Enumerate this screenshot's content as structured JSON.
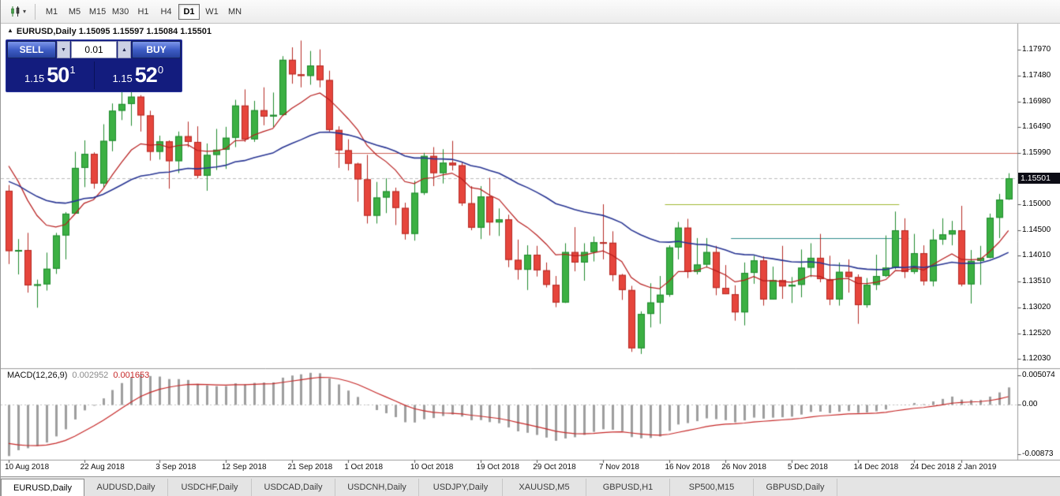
{
  "toolbar": {
    "chart_type_dropdown_icon": "▾",
    "timeframes": [
      {
        "label": "M1",
        "active": false
      },
      {
        "label": "M5",
        "active": false
      },
      {
        "label": "M15",
        "active": false
      },
      {
        "label": "M30",
        "active": false
      },
      {
        "label": "H1",
        "active": false
      },
      {
        "label": "H4",
        "active": false
      },
      {
        "label": "D1",
        "active": true
      },
      {
        "label": "W1",
        "active": false
      },
      {
        "label": "MN",
        "active": false
      }
    ]
  },
  "chart": {
    "title_marker": "▲",
    "title_symbol": "EURUSD,Daily",
    "title_ohlc": "1.15095 1.15597 1.15084 1.15501",
    "current_price": "1.15501",
    "one_click": {
      "sell_label": "SELL",
      "buy_label": "BUY",
      "volume": "0.01",
      "volume_down_icon": "▼",
      "volume_up_icon": "▲",
      "bid_small": "1.15",
      "bid_big": "50",
      "bid_sup": "1",
      "ask_small": "1.15",
      "ask_big": "52",
      "ask_sup": "0"
    }
  },
  "macd_panel": {
    "label": "MACD(12,26,9)",
    "value_main": "0.002952",
    "value_signal": "0.001653"
  },
  "tabs": [
    {
      "label": "EURUSD,Daily",
      "active": true
    },
    {
      "label": "AUDUSD,Daily",
      "active": false
    },
    {
      "label": "USDCHF,Daily",
      "active": false
    },
    {
      "label": "USDCAD,Daily",
      "active": false
    },
    {
      "label": "USDCNH,Daily",
      "active": false
    },
    {
      "label": "USDJPY,Daily",
      "active": false
    },
    {
      "label": "XAUUSD,M5",
      "active": false
    },
    {
      "label": "GBPUSD,H1",
      "active": false
    },
    {
      "label": "SP500,M15",
      "active": false
    },
    {
      "label": "GBPUSD,Daily",
      "active": false
    }
  ],
  "chart_data": {
    "type": "candlestick",
    "title": "EURUSD,Daily",
    "symbol": "EURUSD",
    "timeframe": "Daily",
    "ohlc_current": {
      "open": 1.15095,
      "high": 1.15597,
      "low": 1.15084,
      "close": 1.15501
    },
    "price_axis_labels": [
      "1.17970",
      "1.17480",
      "1.16980",
      "1.16490",
      "1.15990",
      "1.15000",
      "1.14500",
      "1.14010",
      "1.13510",
      "1.13020",
      "1.12520",
      "1.12030"
    ],
    "macd_axis_labels": [
      "0.005074",
      "0.00",
      "-0.00873"
    ],
    "date_labels": [
      {
        "label": "10 Aug 2018",
        "index": 0
      },
      {
        "label": "22 Aug 2018",
        "index": 8
      },
      {
        "label": "3 Sep 2018",
        "index": 16
      },
      {
        "label": "12 Sep 2018",
        "index": 23
      },
      {
        "label": "21 Sep 2018",
        "index": 30
      },
      {
        "label": "1 Oct 2018",
        "index": 36
      },
      {
        "label": "10 Oct 2018",
        "index": 43
      },
      {
        "label": "19 Oct 2018",
        "index": 50
      },
      {
        "label": "29 Oct 2018",
        "index": 56
      },
      {
        "label": "7 Nov 2018",
        "index": 63
      },
      {
        "label": "16 Nov 2018",
        "index": 70
      },
      {
        "label": "26 Nov 2018",
        "index": 76
      },
      {
        "label": "5 Dec 2018",
        "index": 83
      },
      {
        "label": "14 Dec 2018",
        "index": 90
      },
      {
        "label": "24 Dec 2018",
        "index": 96
      },
      {
        "label": "2 Jan 2019",
        "index": 101
      }
    ],
    "price_range": {
      "top": 1.1843,
      "bottom": 1.1186
    },
    "colors": {
      "up_fill": "#3cb043",
      "up_stroke": "#1f8a2e",
      "down_fill": "#e6453c",
      "down_stroke": "#b52a24",
      "ma_fast": "#b71c1c",
      "ma_slow": "#283593",
      "hline_resistance": "#cd6155",
      "hline_upper": "#9fb832",
      "hline_lower": "#2e8b8b",
      "macd_histogram": "#9e9e9e",
      "macd_signal": "#c62828",
      "bid_line": "#bcbcbc"
    },
    "moving_averages": [
      {
        "type": "ema",
        "period": 10,
        "seed": 1.161,
        "color_key": "ma_fast",
        "width": 1.2
      },
      {
        "type": "ema",
        "period": 34,
        "seed": 1.1552,
        "color_key": "ma_slow",
        "width": 1.6
      }
    ],
    "hlines": [
      {
        "price": 1.1599,
        "start_index": 35,
        "to_right_edge": true,
        "color_key": "hline_resistance"
      },
      {
        "price": 1.15,
        "start_index": 70,
        "end_index": 94,
        "to_right_edge": false,
        "color_key": "hline_upper"
      },
      {
        "price": 1.1435,
        "start_index": 77,
        "end_index": 95,
        "to_right_edge": false,
        "color_key": "hline_lower"
      }
    ],
    "macd": {
      "fast": 12,
      "slow": 26,
      "signal": 9,
      "range": {
        "top": 0.00618,
        "bottom": -0.00955
      },
      "seeds": {
        "ema_fast": 1.136,
        "ema_slow": 1.1462,
        "signal": -0.0063
      }
    },
    "candles": [
      [
        1.1526,
        1.1537,
        1.1385,
        1.141
      ],
      [
        1.141,
        1.1433,
        1.1365,
        1.1412
      ],
      [
        1.1412,
        1.1445,
        1.133,
        1.1344
      ],
      [
        1.1344,
        1.1355,
        1.1301,
        1.1346
      ],
      [
        1.1346,
        1.1407,
        1.1334,
        1.1376
      ],
      [
        1.1376,
        1.1445,
        1.1366,
        1.144
      ],
      [
        1.144,
        1.1485,
        1.1394,
        1.1482
      ],
      [
        1.1482,
        1.1601,
        1.1482,
        1.157
      ],
      [
        1.157,
        1.1623,
        1.1533,
        1.1597
      ],
      [
        1.1597,
        1.16,
        1.153,
        1.154
      ],
      [
        1.154,
        1.1654,
        1.1532,
        1.1622
      ],
      [
        1.1622,
        1.1694,
        1.1602,
        1.168
      ],
      [
        1.168,
        1.1734,
        1.1662,
        1.1693
      ],
      [
        1.1693,
        1.1717,
        1.1651,
        1.1707
      ],
      [
        1.1707,
        1.171,
        1.164,
        1.1671
      ],
      [
        1.1671,
        1.168,
        1.1584,
        1.1601
      ],
      [
        1.1601,
        1.1632,
        1.1586,
        1.1621
      ],
      [
        1.1621,
        1.1623,
        1.153,
        1.1583
      ],
      [
        1.1583,
        1.164,
        1.156,
        1.1631
      ],
      [
        1.1631,
        1.1659,
        1.161,
        1.162
      ],
      [
        1.162,
        1.165,
        1.155,
        1.1555
      ],
      [
        1.1555,
        1.1617,
        1.1526,
        1.1595
      ],
      [
        1.1595,
        1.1645,
        1.1566,
        1.1605
      ],
      [
        1.1605,
        1.1649,
        1.1568,
        1.1628
      ],
      [
        1.1628,
        1.1701,
        1.161,
        1.169
      ],
      [
        1.169,
        1.1721,
        1.162,
        1.1625
      ],
      [
        1.1625,
        1.1699,
        1.162,
        1.1681
      ],
      [
        1.1681,
        1.1725,
        1.1652,
        1.1669
      ],
      [
        1.1669,
        1.1715,
        1.1649,
        1.1672
      ],
      [
        1.1672,
        1.1785,
        1.1672,
        1.1778
      ],
      [
        1.1778,
        1.1802,
        1.1732,
        1.175
      ],
      [
        1.175,
        1.1815,
        1.1725,
        1.1747
      ],
      [
        1.1747,
        1.1795,
        1.173,
        1.1767
      ],
      [
        1.1767,
        1.1798,
        1.1725,
        1.1739
      ],
      [
        1.1739,
        1.1757,
        1.164,
        1.1643
      ],
      [
        1.1643,
        1.165,
        1.157,
        1.1604
      ],
      [
        1.1604,
        1.1625,
        1.1565,
        1.1578
      ],
      [
        1.1578,
        1.158,
        1.1505,
        1.1548
      ],
      [
        1.1548,
        1.1595,
        1.1463,
        1.1478
      ],
      [
        1.1478,
        1.1543,
        1.1463,
        1.1513
      ],
      [
        1.1513,
        1.155,
        1.1483,
        1.1525
      ],
      [
        1.1525,
        1.1532,
        1.146,
        1.1493
      ],
      [
        1.1493,
        1.1503,
        1.1432,
        1.1443
      ],
      [
        1.1443,
        1.1545,
        1.143,
        1.1522
      ],
      [
        1.1522,
        1.1599,
        1.1518,
        1.1593
      ],
      [
        1.1593,
        1.161,
        1.1535,
        1.156
      ],
      [
        1.156,
        1.1606,
        1.154,
        1.158
      ],
      [
        1.158,
        1.1622,
        1.1565,
        1.1575
      ],
      [
        1.1575,
        1.1581,
        1.1497,
        1.1502
      ],
      [
        1.1502,
        1.1535,
        1.145,
        1.1455
      ],
      [
        1.1455,
        1.1535,
        1.1433,
        1.1515
      ],
      [
        1.1515,
        1.1551,
        1.144,
        1.1465
      ],
      [
        1.1465,
        1.1492,
        1.1439,
        1.1471
      ],
      [
        1.1471,
        1.148,
        1.1379,
        1.1393
      ],
      [
        1.1393,
        1.1432,
        1.1355,
        1.1374
      ],
      [
        1.1374,
        1.1421,
        1.1335,
        1.1403
      ],
      [
        1.1403,
        1.142,
        1.1361,
        1.1373
      ],
      [
        1.1373,
        1.1388,
        1.134,
        1.1345
      ],
      [
        1.1345,
        1.1362,
        1.1302,
        1.1311
      ],
      [
        1.1311,
        1.1425,
        1.131,
        1.1408
      ],
      [
        1.1408,
        1.1456,
        1.1371,
        1.1388
      ],
      [
        1.1388,
        1.1425,
        1.1353,
        1.1408
      ],
      [
        1.1408,
        1.1438,
        1.139,
        1.1427
      ],
      [
        1.1427,
        1.15,
        1.1394,
        1.1426
      ],
      [
        1.1426,
        1.1448,
        1.1352,
        1.1364
      ],
      [
        1.1364,
        1.1366,
        1.1316,
        1.1335
      ],
      [
        1.1335,
        1.1343,
        1.1216,
        1.1223
      ],
      [
        1.1223,
        1.1294,
        1.1212,
        1.1289
      ],
      [
        1.1289,
        1.1348,
        1.1263,
        1.1311
      ],
      [
        1.1311,
        1.1362,
        1.127,
        1.1326
      ],
      [
        1.1326,
        1.1421,
        1.1322,
        1.1417
      ],
      [
        1.1417,
        1.1466,
        1.1394,
        1.1455
      ],
      [
        1.1455,
        1.1472,
        1.1358,
        1.137
      ],
      [
        1.137,
        1.1435,
        1.1365,
        1.1384
      ],
      [
        1.1384,
        1.1435,
        1.1378,
        1.1408
      ],
      [
        1.1408,
        1.142,
        1.1325,
        1.1339
      ],
      [
        1.1339,
        1.1383,
        1.1327,
        1.1327
      ],
      [
        1.1327,
        1.1344,
        1.1276,
        1.1292
      ],
      [
        1.1292,
        1.1388,
        1.1267,
        1.1368
      ],
      [
        1.1368,
        1.1401,
        1.1347,
        1.1392
      ],
      [
        1.1392,
        1.14,
        1.1305,
        1.1317
      ],
      [
        1.1317,
        1.138,
        1.1317,
        1.1354
      ],
      [
        1.1354,
        1.142,
        1.1318,
        1.1342
      ],
      [
        1.1342,
        1.136,
        1.131,
        1.1345
      ],
      [
        1.1345,
        1.1413,
        1.1321,
        1.1378
      ],
      [
        1.1378,
        1.1425,
        1.136,
        1.1397
      ],
      [
        1.1397,
        1.1443,
        1.135,
        1.1356
      ],
      [
        1.1356,
        1.1401,
        1.1306,
        1.1317
      ],
      [
        1.1317,
        1.1388,
        1.1305,
        1.137
      ],
      [
        1.137,
        1.1394,
        1.133,
        1.136
      ],
      [
        1.136,
        1.1365,
        1.127,
        1.1306
      ],
      [
        1.1306,
        1.1358,
        1.1301,
        1.1345
      ],
      [
        1.1345,
        1.1403,
        1.1335,
        1.1362
      ],
      [
        1.1362,
        1.144,
        1.136,
        1.1378
      ],
      [
        1.1378,
        1.1486,
        1.1375,
        1.145
      ],
      [
        1.145,
        1.1473,
        1.1358,
        1.137
      ],
      [
        1.137,
        1.1443,
        1.1366,
        1.1406
      ],
      [
        1.1406,
        1.1421,
        1.1344,
        1.1352
      ],
      [
        1.1352,
        1.1452,
        1.1342,
        1.1432
      ],
      [
        1.1432,
        1.1473,
        1.1422,
        1.1442
      ],
      [
        1.1442,
        1.1468,
        1.1421,
        1.145
      ],
      [
        1.145,
        1.1497,
        1.1342,
        1.1346
      ],
      [
        1.1346,
        1.1412,
        1.1309,
        1.1391
      ],
      [
        1.1391,
        1.142,
        1.1345,
        1.1397
      ],
      [
        1.1397,
        1.1482,
        1.1396,
        1.1474
      ],
      [
        1.1474,
        1.152,
        1.1435,
        1.1509
      ],
      [
        1.15095,
        1.15597,
        1.15084,
        1.15501
      ]
    ]
  }
}
